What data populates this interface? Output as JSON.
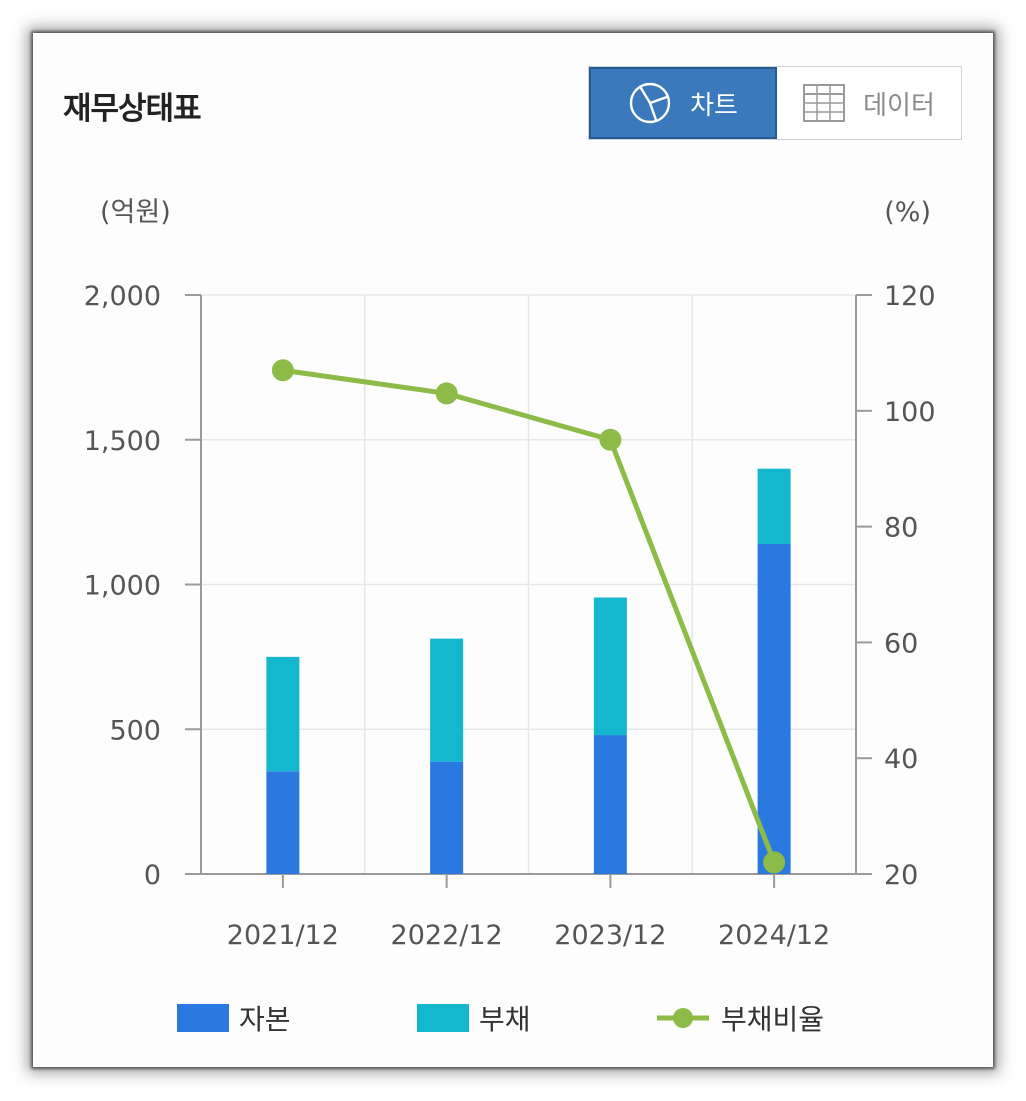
{
  "header": {
    "title": "재무상태표",
    "toggle": {
      "chart_label": "차트",
      "data_label": "데이터",
      "chart_icon": "pie-chart-icon",
      "data_icon": "table-grid-icon"
    }
  },
  "colors": {
    "equity": "#2a79e0",
    "liabilities": "#13b8cf",
    "ratio": "#8dbb48",
    "active_toggle": "#3a79bb"
  },
  "chart_data": {
    "type": "bar",
    "stacked": true,
    "categories": [
      "2021/12",
      "2022/12",
      "2023/12",
      "2024/12"
    ],
    "series": [
      {
        "name": "자본",
        "type": "bar",
        "axis": "left",
        "values": [
          355,
          388,
          480,
          1140
        ]
      },
      {
        "name": "부채",
        "type": "bar",
        "axis": "left",
        "values": [
          395,
          425,
          475,
          260
        ]
      },
      {
        "name": "부채비율",
        "type": "line",
        "axis": "right",
        "values": [
          107,
          103,
          95,
          22
        ]
      }
    ],
    "ylabel": "(억원)",
    "y2label": "(%)",
    "ylim": [
      0,
      2000
    ],
    "y2lim": [
      20,
      120
    ],
    "yticks": [
      "2,000",
      "1,500",
      "1,000",
      "500",
      "0"
    ],
    "y2ticks": [
      "120",
      "100",
      "80",
      "60",
      "40",
      "20"
    ],
    "grid": true,
    "legend_position": "bottom"
  }
}
